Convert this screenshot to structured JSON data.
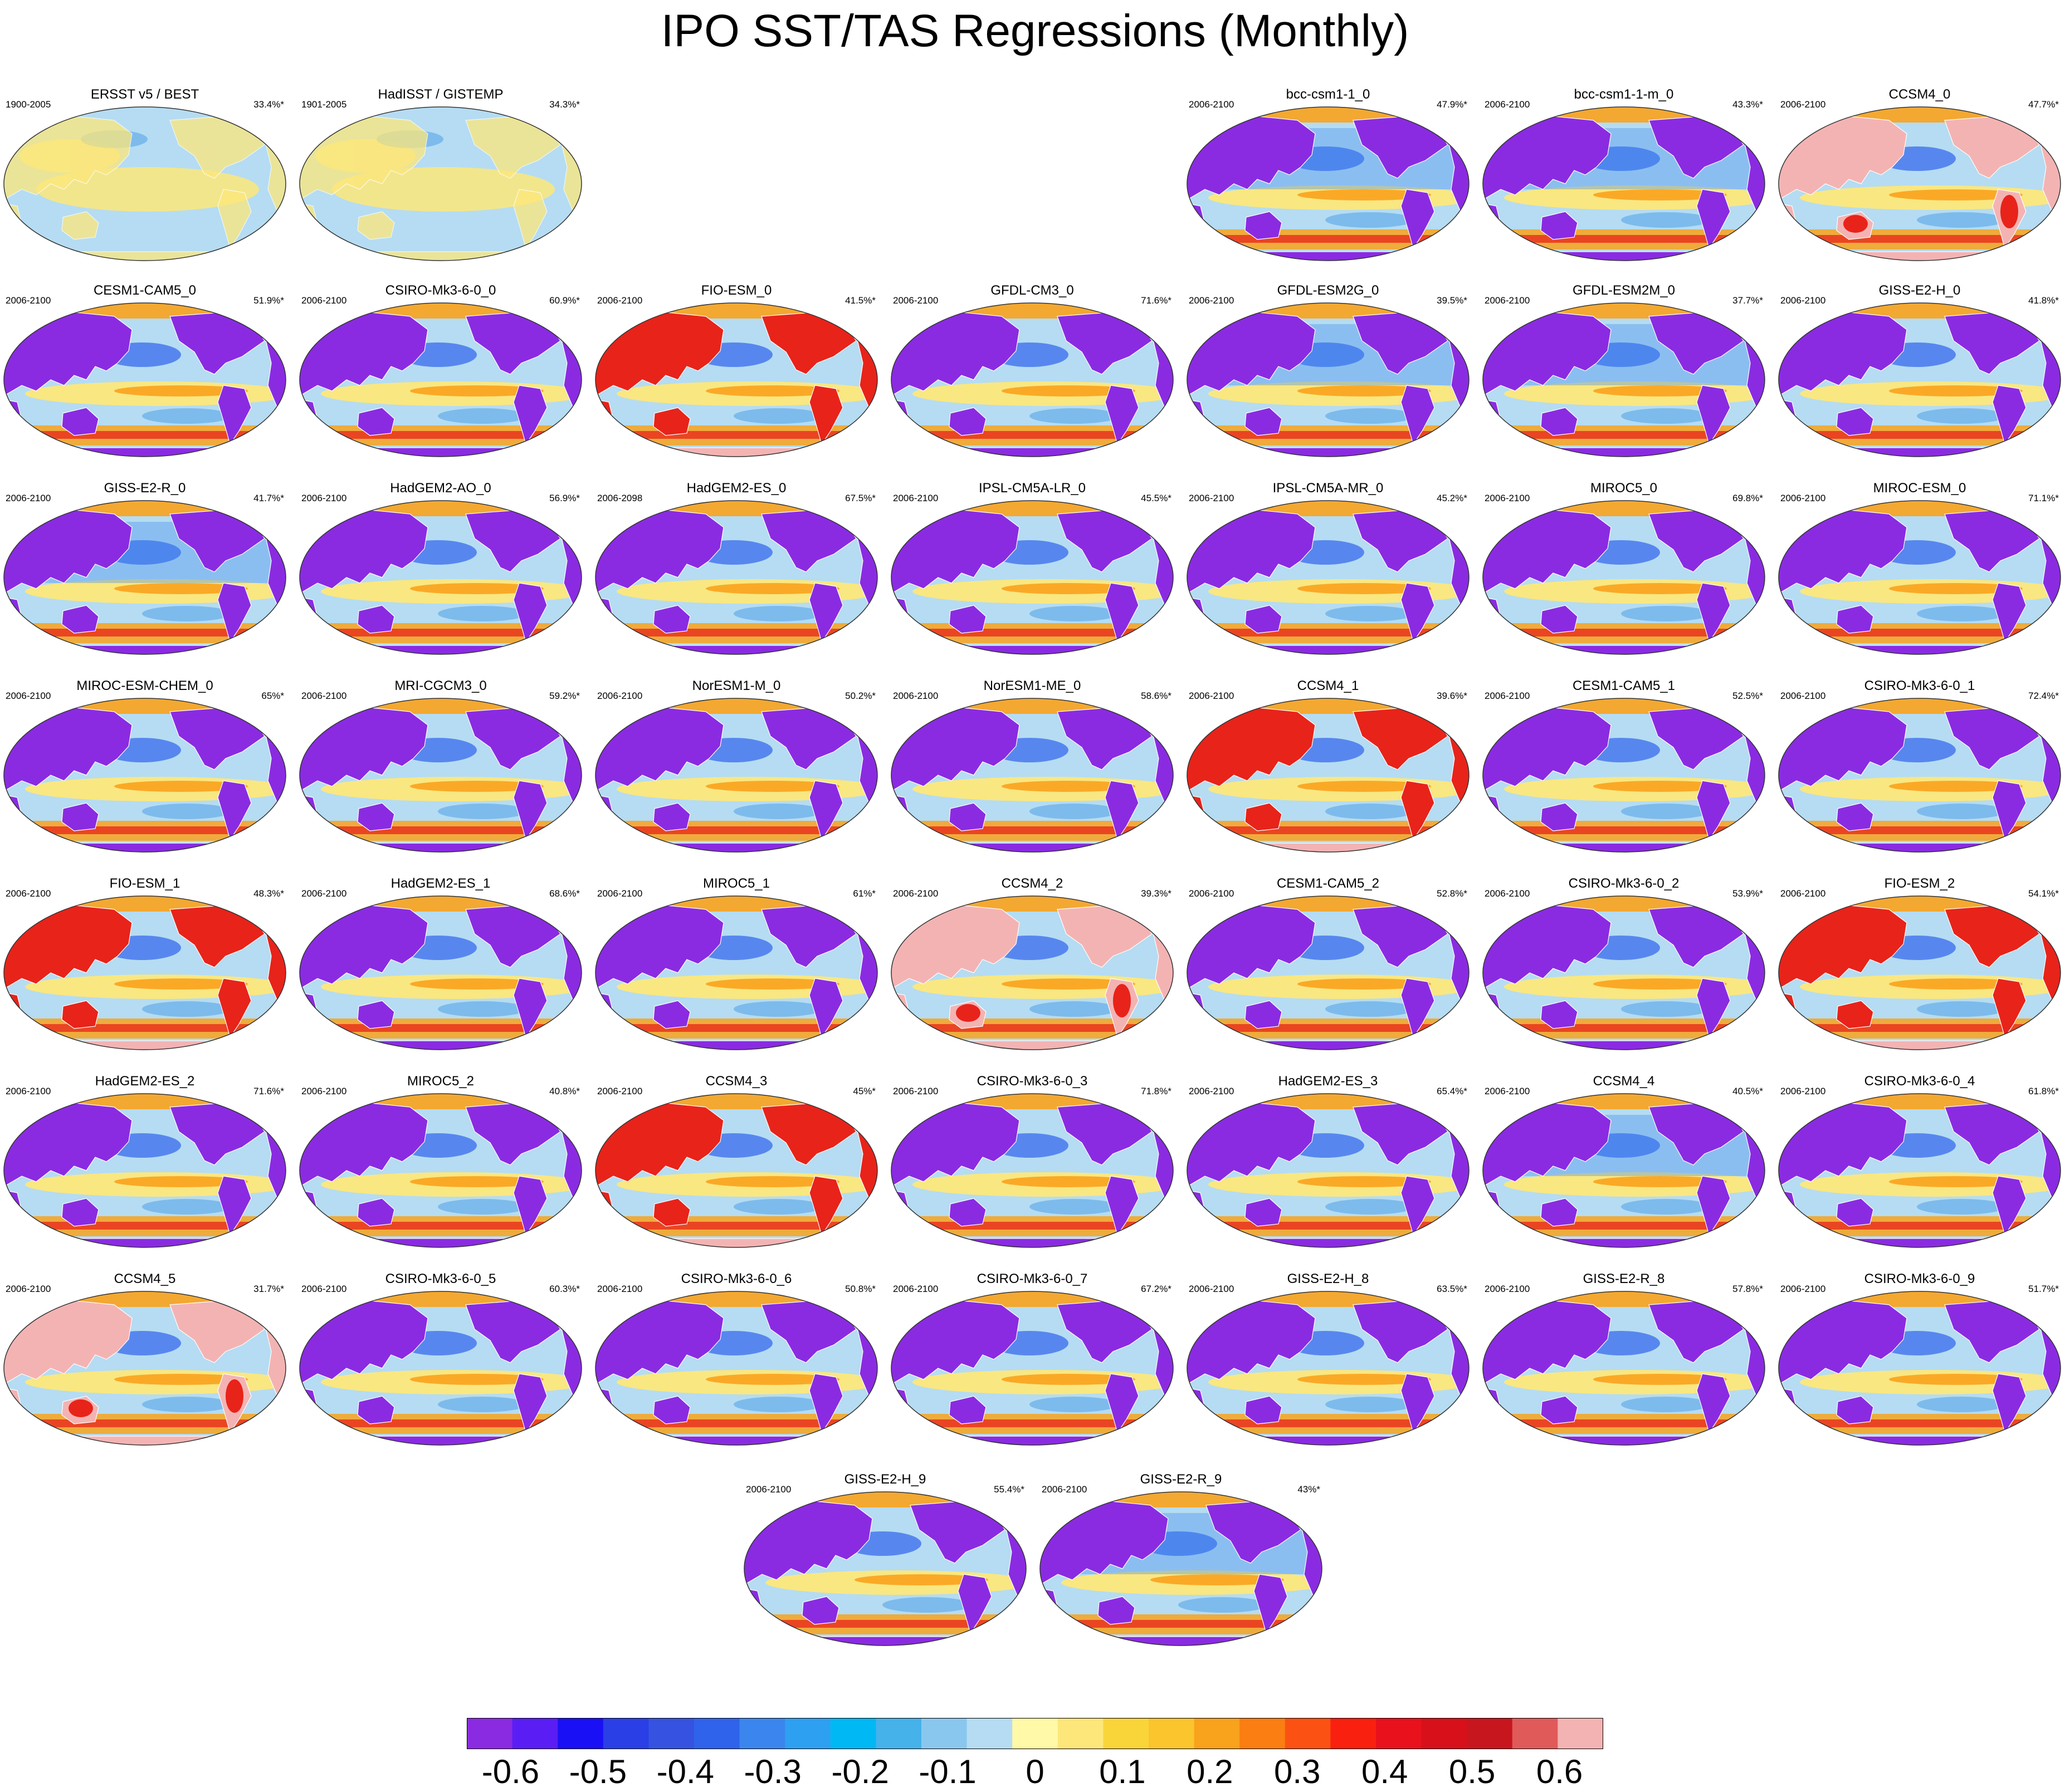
{
  "title": "IPO SST/TAS Regressions (Monthly)",
  "colors": {
    "land_purple": "#8a2be2",
    "ocean_light_blue": "#b5dcf2",
    "warm_yellow": "#fde77a",
    "warm_orange": "#f9a21c",
    "hot_red": "#e8231a",
    "pink": "#f4b3b3",
    "strong_blue": "#2f63ec"
  },
  "colorbar": {
    "colors": [
      "#8a2be2",
      "#5a1ef5",
      "#1a10f5",
      "#2a3fe6",
      "#3553e0",
      "#2f63ec",
      "#3b86ee",
      "#2ea0f2",
      "#00b8f4",
      "#45b2ea",
      "#8ac7ee",
      "#b5dcf2",
      "#fff9a8",
      "#fde77a",
      "#fad53a",
      "#fbc52e",
      "#f9a21c",
      "#fb7e12",
      "#fb5213",
      "#fa2010",
      "#e8111c",
      "#d8101a",
      "#c8161f",
      "#e05a5a",
      "#f4b3b3"
    ],
    "tick_labels": [
      "-0.6",
      "-0.5",
      "-0.4",
      "-0.3",
      "-0.2",
      "-0.1",
      "0",
      "0.1",
      "0.2",
      "0.3",
      "0.4",
      "0.5",
      "0.6"
    ],
    "tick_values": [
      -0.6,
      -0.5,
      -0.4,
      -0.3,
      -0.2,
      -0.1,
      0,
      0.1,
      0.2,
      0.3,
      0.4,
      0.5,
      0.6
    ],
    "min": -0.65,
    "max": 0.65
  },
  "panels": [
    {
      "title": "ERSST v5 / BEST",
      "period": "1900-2005",
      "pct": "33.4%*",
      "style": "obs"
    },
    {
      "title": "HadISST / GISTEMP",
      "period": "1901-2005",
      "pct": "34.3%*",
      "style": "obs"
    },
    {
      "title": "bcc-csm1-1_0",
      "period": "2006-2100",
      "pct": "47.9%*",
      "style": "cool"
    },
    {
      "title": "bcc-csm1-1-m_0",
      "period": "2006-2100",
      "pct": "43.3%*",
      "style": "cool"
    },
    {
      "title": "CCSM4_0",
      "period": "2006-2100",
      "pct": "47.7%*",
      "style": "pink"
    },
    {
      "title": "CESM1-CAM5_0",
      "period": "2006-2100",
      "pct": "51.9%*",
      "style": "std"
    },
    {
      "title": "CSIRO-Mk3-6-0_0",
      "period": "2006-2100",
      "pct": "60.9%*",
      "style": "std"
    },
    {
      "title": "FIO-ESM_0",
      "period": "2006-2100",
      "pct": "41.5%*",
      "style": "red"
    },
    {
      "title": "GFDL-CM3_0",
      "period": "2006-2100",
      "pct": "71.6%*",
      "style": "std"
    },
    {
      "title": "GFDL-ESM2G_0",
      "period": "2006-2100",
      "pct": "39.5%*",
      "style": "cool"
    },
    {
      "title": "GFDL-ESM2M_0",
      "period": "2006-2100",
      "pct": "37.7%*",
      "style": "cool"
    },
    {
      "title": "GISS-E2-H_0",
      "period": "2006-2100",
      "pct": "41.8%*",
      "style": "std"
    },
    {
      "title": "GISS-E2-R_0",
      "period": "2006-2100",
      "pct": "41.7%*",
      "style": "cool"
    },
    {
      "title": "HadGEM2-AO_0",
      "period": "2006-2100",
      "pct": "56.9%*",
      "style": "std"
    },
    {
      "title": "HadGEM2-ES_0",
      "period": "2006-2098",
      "pct": "67.5%*",
      "style": "std"
    },
    {
      "title": "IPSL-CM5A-LR_0",
      "period": "2006-2100",
      "pct": "45.5%*",
      "style": "std"
    },
    {
      "title": "IPSL-CM5A-MR_0",
      "period": "2006-2100",
      "pct": "45.2%*",
      "style": "std"
    },
    {
      "title": "MIROC5_0",
      "period": "2006-2100",
      "pct": "69.8%*",
      "style": "std"
    },
    {
      "title": "MIROC-ESM_0",
      "period": "2006-2100",
      "pct": "71.1%*",
      "style": "std"
    },
    {
      "title": "MIROC-ESM-CHEM_0",
      "period": "2006-2100",
      "pct": "65%*",
      "style": "std"
    },
    {
      "title": "MRI-CGCM3_0",
      "period": "2006-2100",
      "pct": "59.2%*",
      "style": "std"
    },
    {
      "title": "NorESM1-M_0",
      "period": "2006-2100",
      "pct": "50.2%*",
      "style": "std"
    },
    {
      "title": "NorESM1-ME_0",
      "period": "2006-2100",
      "pct": "58.6%*",
      "style": "std"
    },
    {
      "title": "CCSM4_1",
      "period": "2006-2100",
      "pct": "39.6%*",
      "style": "red"
    },
    {
      "title": "CESM1-CAM5_1",
      "period": "2006-2100",
      "pct": "52.5%*",
      "style": "std"
    },
    {
      "title": "CSIRO-Mk3-6-0_1",
      "period": "2006-2100",
      "pct": "72.4%*",
      "style": "std"
    },
    {
      "title": "FIO-ESM_1",
      "period": "2006-2100",
      "pct": "48.3%*",
      "style": "red"
    },
    {
      "title": "HadGEM2-ES_1",
      "period": "2006-2100",
      "pct": "68.6%*",
      "style": "std"
    },
    {
      "title": "MIROC5_1",
      "period": "2006-2100",
      "pct": "61%*",
      "style": "std"
    },
    {
      "title": "CCSM4_2",
      "period": "2006-2100",
      "pct": "39.3%*",
      "style": "pink"
    },
    {
      "title": "CESM1-CAM5_2",
      "period": "2006-2100",
      "pct": "52.8%*",
      "style": "std"
    },
    {
      "title": "CSIRO-Mk3-6-0_2",
      "period": "2006-2100",
      "pct": "53.9%*",
      "style": "std"
    },
    {
      "title": "FIO-ESM_2",
      "period": "2006-2100",
      "pct": "54.1%*",
      "style": "red"
    },
    {
      "title": "HadGEM2-ES_2",
      "period": "2006-2100",
      "pct": "71.6%*",
      "style": "std"
    },
    {
      "title": "MIROC5_2",
      "period": "2006-2100",
      "pct": "40.8%*",
      "style": "std"
    },
    {
      "title": "CCSM4_3",
      "period": "2006-2100",
      "pct": "45%*",
      "style": "red"
    },
    {
      "title": "CSIRO-Mk3-6-0_3",
      "period": "2006-2100",
      "pct": "71.8%*",
      "style": "std"
    },
    {
      "title": "HadGEM2-ES_3",
      "period": "2006-2100",
      "pct": "65.4%*",
      "style": "std"
    },
    {
      "title": "CCSM4_4",
      "period": "2006-2100",
      "pct": "40.5%*",
      "style": "cool"
    },
    {
      "title": "CSIRO-Mk3-6-0_4",
      "period": "2006-2100",
      "pct": "61.8%*",
      "style": "std"
    },
    {
      "title": "CCSM4_5",
      "period": "2006-2100",
      "pct": "31.7%*",
      "style": "pink"
    },
    {
      "title": "CSIRO-Mk3-6-0_5",
      "period": "2006-2100",
      "pct": "60.3%*",
      "style": "std"
    },
    {
      "title": "CSIRO-Mk3-6-0_6",
      "period": "2006-2100",
      "pct": "50.8%*",
      "style": "std"
    },
    {
      "title": "CSIRO-Mk3-6-0_7",
      "period": "2006-2100",
      "pct": "67.2%*",
      "style": "std"
    },
    {
      "title": "GISS-E2-H_8",
      "period": "2006-2100",
      "pct": "63.5%*",
      "style": "std"
    },
    {
      "title": "GISS-E2-R_8",
      "period": "2006-2100",
      "pct": "57.8%*",
      "style": "std"
    },
    {
      "title": "CSIRO-Mk3-6-0_9",
      "period": "2006-2100",
      "pct": "51.7%*",
      "style": "std"
    },
    {
      "title": "GISS-E2-H_9",
      "period": "2006-2100",
      "pct": "55.4%*",
      "style": "std"
    },
    {
      "title": "GISS-E2-R_9",
      "period": "2006-2100",
      "pct": "43%*",
      "style": "cool"
    }
  ]
}
